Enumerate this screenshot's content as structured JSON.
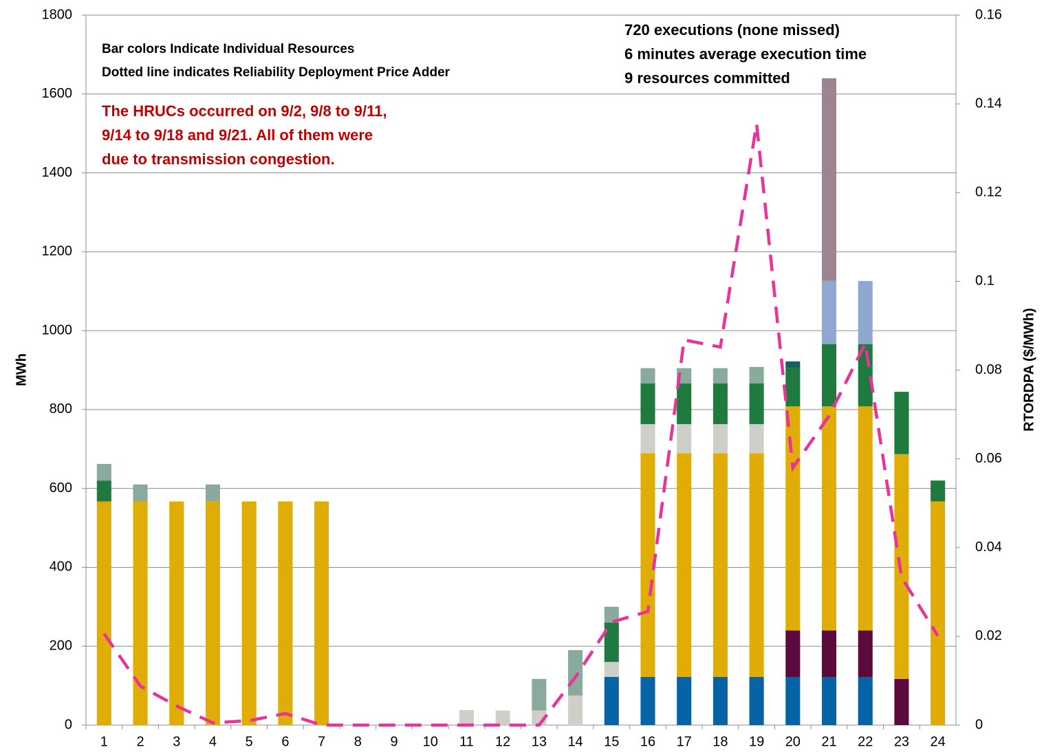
{
  "chart_data": {
    "type": "bar",
    "categories": [
      "1",
      "2",
      "3",
      "4",
      "5",
      "6",
      "7",
      "8",
      "9",
      "10",
      "11",
      "12",
      "13",
      "14",
      "15",
      "16",
      "17",
      "18",
      "19",
      "20",
      "21",
      "22",
      "23",
      "24"
    ],
    "series": [
      {
        "color": "#0563a6",
        "values": [
          0,
          0,
          0,
          0,
          0,
          0,
          0,
          0,
          0,
          0,
          0,
          0,
          0,
          0,
          122,
          122,
          122,
          122,
          122,
          122,
          122,
          122,
          0,
          0
        ]
      },
      {
        "color": "#5c0a3c",
        "values": [
          0,
          0,
          0,
          0,
          0,
          0,
          0,
          0,
          0,
          0,
          0,
          0,
          0,
          0,
          0,
          0,
          0,
          0,
          0,
          118,
          118,
          118,
          117,
          0
        ]
      },
      {
        "color": "#e0ac06",
        "values": [
          567,
          567,
          567,
          567,
          567,
          567,
          567,
          0,
          0,
          0,
          0,
          0,
          0,
          0,
          0,
          567,
          567,
          567,
          567,
          568,
          568,
          568,
          570,
          567
        ]
      },
      {
        "color": "#cfcfc9",
        "values": [
          0,
          0,
          0,
          0,
          0,
          0,
          0,
          0,
          0,
          0,
          38,
          37,
          37,
          75,
          38,
          74,
          74,
          74,
          74,
          0,
          0,
          0,
          0,
          0
        ]
      },
      {
        "color": "#1e7a3e",
        "values": [
          53,
          0,
          0,
          0,
          0,
          0,
          0,
          0,
          0,
          0,
          0,
          0,
          0,
          0,
          100,
          103,
          103,
          103,
          103,
          97,
          158,
          158,
          158,
          53
        ]
      },
      {
        "color": "#1b5e5e",
        "values": [
          0,
          0,
          0,
          0,
          0,
          0,
          0,
          0,
          0,
          0,
          0,
          0,
          0,
          0,
          0,
          0,
          0,
          0,
          0,
          17,
          0,
          0,
          0,
          0
        ]
      },
      {
        "color": "#8aaa9e",
        "values": [
          42,
          43,
          0,
          43,
          0,
          0,
          0,
          0,
          0,
          0,
          0,
          0,
          80,
          115,
          40,
          39,
          39,
          39,
          42,
          0,
          0,
          0,
          0,
          0
        ]
      },
      {
        "color": "#8fa8d2",
        "values": [
          0,
          0,
          0,
          0,
          0,
          0,
          0,
          0,
          0,
          0,
          0,
          0,
          0,
          0,
          0,
          0,
          0,
          0,
          0,
          0,
          160,
          160,
          0,
          0
        ]
      },
      {
        "color": "#9e8490",
        "values": [
          0,
          0,
          0,
          0,
          0,
          0,
          0,
          0,
          0,
          0,
          0,
          0,
          0,
          0,
          0,
          0,
          0,
          0,
          0,
          0,
          514,
          0,
          0,
          0
        ]
      },
      {
        "type": "line",
        "axis": "y2",
        "color": "#e8339a",
        "dashed": true,
        "values": [
          0.0206,
          0.0088,
          0.0043,
          0.0005,
          0.001,
          0.0026,
          0,
          0,
          0,
          0,
          0,
          0,
          0,
          0.0108,
          0.0232,
          0.0256,
          0.0868,
          0.0852,
          0.1355,
          0.058,
          0.0697,
          0.086,
          0.0333,
          0.0201
        ]
      }
    ],
    "stacked": true,
    "ylabel": "MWh",
    "y2label": "RTORDPA ($/MWh)",
    "ylim": [
      0,
      1800
    ],
    "yticks": [
      0,
      200,
      400,
      600,
      800,
      1000,
      1200,
      1400,
      1600,
      1800
    ],
    "y2lim": [
      0,
      0.16
    ],
    "y2ticks": [
      0,
      0.02,
      0.04,
      0.06,
      0.08,
      0.1,
      0.12,
      0.14,
      0.16
    ],
    "grid": true,
    "annotations": [
      "Bar colors Indicate Individual Resources",
      "Dotted line indicates Reliability Deployment Price Adder",
      "720 executions (none missed)",
      "6 minutes average execution time",
      "9 resources committed",
      "The HRUCs occurred on 9/2, 9/8 to 9/11,",
      "9/14 to 9/18 and 9/21.  All of them were",
      "due to transmission congestion."
    ]
  }
}
